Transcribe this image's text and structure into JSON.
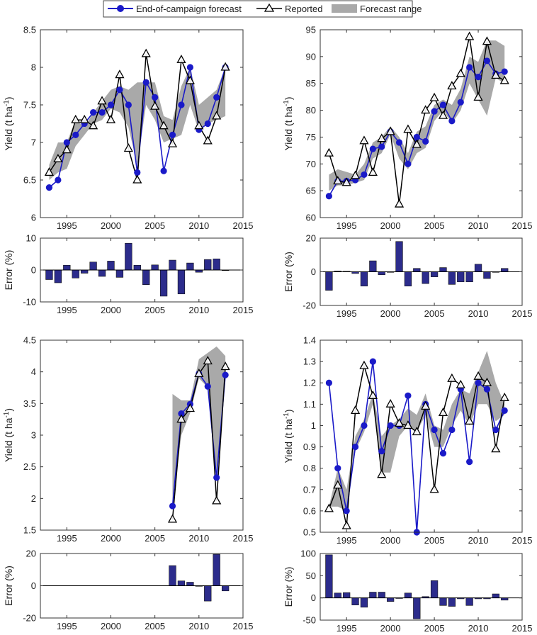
{
  "legend": {
    "forecast": "End-of-campaign forecast",
    "reported": "Reported",
    "range": "Forecast range"
  },
  "colors": {
    "forecast": "#1a1ac8",
    "reported": "#000000",
    "range": "#a9a9a9",
    "bar": "#2c2c8c"
  },
  "chart_data": [
    {
      "type": "line",
      "panel": "top-left",
      "ylabel": "Yield (t ha-1)",
      "xlim": [
        1992,
        2015
      ],
      "ylim": [
        6,
        8.5
      ],
      "xticks": [
        "1995",
        "2000",
        "2005",
        "2010",
        "2015"
      ],
      "yticks": [
        "6",
        "6.5",
        "7",
        "7.5",
        "8",
        "8.5"
      ],
      "x": [
        1993,
        1994,
        1995,
        1996,
        1997,
        1998,
        1999,
        2000,
        2001,
        2002,
        2003,
        2004,
        2005,
        2006,
        2007,
        2008,
        2009,
        2010,
        2011,
        2012,
        2013
      ],
      "series": [
        {
          "name": "End-of-campaign forecast",
          "values": [
            6.4,
            6.5,
            7.0,
            7.1,
            7.25,
            7.4,
            7.4,
            7.5,
            7.7,
            7.5,
            6.6,
            7.8,
            7.6,
            6.62,
            7.1,
            7.5,
            8.0,
            7.17,
            7.25,
            7.6,
            8.0
          ]
        },
        {
          "name": "Reported",
          "values": [
            6.6,
            6.78,
            6.9,
            7.3,
            7.3,
            7.22,
            7.55,
            7.3,
            7.9,
            6.92,
            6.5,
            8.18,
            7.48,
            7.22,
            6.98,
            8.1,
            7.82,
            7.22,
            7.02,
            7.35,
            8.0
          ]
        }
      ],
      "range_low": [
        6.5,
        6.6,
        6.65,
        6.95,
        7.1,
        7.25,
        7.3,
        7.45,
        7.4,
        7.2,
        6.7,
        7.5,
        7.3,
        7.0,
        7.05,
        7.1,
        7.5,
        7.15,
        7.25,
        7.3,
        7.35
      ],
      "range_high": [
        6.7,
        7.0,
        7.0,
        7.3,
        7.2,
        7.4,
        7.55,
        7.7,
        7.75,
        7.7,
        7.8,
        7.8,
        7.8,
        7.35,
        7.3,
        7.75,
        8.0,
        7.5,
        7.6,
        7.7,
        8.0
      ]
    },
    {
      "type": "line",
      "panel": "top-right",
      "ylabel": "Yield (t ha-1)",
      "xlim": [
        1992,
        2015
      ],
      "ylim": [
        60,
        95
      ],
      "xticks": [
        "1995",
        "2000",
        "2005",
        "2010",
        "2015"
      ],
      "yticks": [
        "60",
        "65",
        "70",
        "75",
        "80",
        "85",
        "90",
        "95"
      ],
      "x": [
        1993,
        1994,
        1995,
        1996,
        1997,
        1998,
        1999,
        2000,
        2001,
        2002,
        2003,
        2004,
        2005,
        2006,
        2007,
        2008,
        2009,
        2010,
        2011,
        2012,
        2013
      ],
      "series": [
        {
          "name": "End-of-campaign forecast",
          "values": [
            64,
            66.8,
            66.8,
            67,
            68,
            72.8,
            73.2,
            76,
            74,
            70,
            75,
            74.2,
            79.8,
            81,
            78,
            81.5,
            88,
            86.2,
            89.2,
            86.8,
            87.2
          ]
        },
        {
          "name": "Reported",
          "values": [
            72,
            66.8,
            66.5,
            67.8,
            74.3,
            68.4,
            74.7,
            76,
            62.5,
            76.4,
            73.6,
            80,
            82.3,
            79,
            84.5,
            86.8,
            93.7,
            82.4,
            92.8,
            86.5,
            85.5
          ]
        }
      ],
      "range_low": [
        65,
        66,
        66,
        66.5,
        67,
        71,
        72,
        75.5,
        71,
        69,
        72,
        73,
        78,
        80,
        77.5,
        80,
        85,
        82,
        79,
        86,
        85
      ],
      "range_high": [
        68,
        69,
        68.5,
        68,
        70,
        74,
        75,
        77,
        75,
        72,
        76,
        77,
        81,
        82,
        81,
        84,
        90,
        89,
        93,
        93,
        92
      ]
    },
    {
      "type": "line",
      "panel": "bottom-left",
      "ylabel": "Yield (t ha-1)",
      "xlim": [
        1992,
        2015
      ],
      "ylim": [
        1.5,
        4.5
      ],
      "xticks": [
        "1995",
        "2000",
        "2005",
        "2010",
        "2015"
      ],
      "yticks": [
        "1.5",
        "2",
        "2.5",
        "3",
        "3.5",
        "4",
        "4.5"
      ],
      "x": [
        2007,
        2008,
        2009,
        2010,
        2011,
        2012,
        2013
      ],
      "series": [
        {
          "name": "End-of-campaign forecast",
          "values": [
            1.88,
            3.34,
            3.49,
            3.97,
            3.77,
            2.33,
            3.95
          ]
        },
        {
          "name": "Reported",
          "values": [
            1.67,
            3.25,
            3.42,
            3.97,
            4.17,
            1.96,
            4.08
          ]
        }
      ],
      "range_low": [
        1.88,
        3.0,
        3.35,
        3.9,
        3.75,
        2.33,
        3.95
      ],
      "range_high": [
        3.65,
        3.55,
        3.55,
        4.2,
        4.3,
        4.4,
        4.25
      ]
    },
    {
      "type": "line",
      "panel": "bottom-right",
      "ylabel": "Yield (t ha-1)",
      "xlim": [
        1992,
        2015
      ],
      "ylim": [
        0.5,
        1.4
      ],
      "xticks": [
        "1995",
        "2000",
        "2005",
        "2010",
        "2015"
      ],
      "yticks": [
        "0.5",
        "0.6",
        "0.7",
        "0.8",
        "0.9",
        "1",
        "1.1",
        "1.2",
        "1.3",
        "1.4"
      ],
      "x": [
        1993,
        1994,
        1995,
        1996,
        1997,
        1998,
        1999,
        2000,
        2001,
        2002,
        2003,
        2004,
        2005,
        2006,
        2007,
        2008,
        2009,
        2010,
        2011,
        2012,
        2013
      ],
      "series": [
        {
          "name": "End-of-campaign forecast",
          "values": [
            1.2,
            0.8,
            0.6,
            0.9,
            1.0,
            1.3,
            0.88,
            1.0,
            1.0,
            1.14,
            0.5,
            1.1,
            0.98,
            0.87,
            0.98,
            1.17,
            0.83,
            1.2,
            1.17,
            0.98,
            1.07
          ]
        },
        {
          "name": "Reported",
          "values": [
            0.61,
            0.72,
            0.53,
            1.07,
            1.28,
            1.14,
            0.77,
            1.1,
            1.01,
            1.0,
            0.97,
            1.09,
            0.7,
            1.06,
            1.22,
            1.19,
            1.02,
            1.23,
            1.2,
            0.89,
            1.13
          ]
        }
      ],
      "range_low": [
        0.62,
        0.62,
        0.6,
        0.88,
        0.97,
        1.1,
        0.78,
        0.78,
        0.95,
        1.0,
        0.97,
        1.05,
        0.9,
        0.9,
        1.0,
        1.07,
        1.0,
        1.1,
        1.1,
        1.02,
        1.05
      ],
      "range_high": [
        0.62,
        0.8,
        0.7,
        0.95,
        1.03,
        1.15,
        0.95,
        1.0,
        1.03,
        1.08,
        1.05,
        1.15,
        1.0,
        0.98,
        1.1,
        1.17,
        1.15,
        1.25,
        1.35,
        1.2,
        1.1
      ]
    },
    {
      "type": "bar",
      "panel": "top-left-error",
      "ylabel": "Error (%)",
      "xlim": [
        1992,
        2015
      ],
      "ylim": [
        -10,
        10
      ],
      "xticks": [
        "1995",
        "2000",
        "2005",
        "2010",
        "2015"
      ],
      "yticks": [
        "-10",
        "0",
        "10"
      ],
      "x": [
        1993,
        1994,
        1995,
        1996,
        1997,
        1998,
        1999,
        2000,
        2001,
        2002,
        2003,
        2004,
        2005,
        2006,
        2007,
        2008,
        2009,
        2010,
        2011,
        2012,
        2013
      ],
      "values": [
        -3,
        -4,
        1.5,
        -2.5,
        -1,
        2.5,
        -2,
        2.8,
        -2.3,
        8.4,
        1.5,
        -4.6,
        1.6,
        -8.2,
        3.1,
        -7.5,
        2.2,
        -0.7,
        3.3,
        3.5,
        -0.1
      ]
    },
    {
      "type": "bar",
      "panel": "top-right-error",
      "ylabel": "Error (%)",
      "xlim": [
        1992,
        2015
      ],
      "ylim": [
        -20,
        20
      ],
      "xticks": [
        "1995",
        "2000",
        "2005",
        "2010",
        "2015"
      ],
      "yticks": [
        "-20",
        "0",
        "20"
      ],
      "x": [
        1993,
        1994,
        1995,
        1996,
        1997,
        1998,
        1999,
        2000,
        2001,
        2002,
        2003,
        2004,
        2005,
        2006,
        2007,
        2008,
        2009,
        2010,
        2011,
        2012,
        2013
      ],
      "values": [
        -11,
        0.5,
        0.3,
        -1,
        -8.5,
        6.5,
        -1.8,
        0,
        18,
        -8.5,
        2,
        -7,
        -3,
        2.5,
        -7.5,
        -6,
        -6,
        4.5,
        -4,
        0,
        2
      ]
    },
    {
      "type": "bar",
      "panel": "bottom-left-error",
      "ylabel": "Error (%)",
      "xlim": [
        1992,
        2015
      ],
      "ylim": [
        -20,
        20
      ],
      "xticks": [
        "1995",
        "2000",
        "2005",
        "2010",
        "2015"
      ],
      "yticks": [
        "-20",
        "0",
        "20"
      ],
      "x": [
        2007,
        2008,
        2009,
        2010,
        2011,
        2012,
        2013
      ],
      "values": [
        12.5,
        3,
        2.2,
        0,
        -9.5,
        19.5,
        -3.2
      ]
    },
    {
      "type": "bar",
      "panel": "bottom-right-error",
      "ylabel": "Error (%)",
      "xlim": [
        1992,
        2015
      ],
      "ylim": [
        -50,
        100
      ],
      "xticks": [
        "1995",
        "2000",
        "2005",
        "2010",
        "2015"
      ],
      "yticks": [
        "-50",
        "0",
        "50",
        "100"
      ],
      "x": [
        1993,
        1994,
        1995,
        1996,
        1997,
        1998,
        1999,
        2000,
        2001,
        2002,
        2003,
        2004,
        2005,
        2006,
        2007,
        2008,
        2009,
        2010,
        2011,
        2012,
        2013
      ],
      "values": [
        97,
        11,
        12,
        -16,
        -21,
        13,
        13,
        -8,
        0,
        11,
        -47,
        3,
        39,
        -17,
        -19,
        -2,
        -17,
        -2,
        -2,
        9,
        -5
      ]
    }
  ]
}
